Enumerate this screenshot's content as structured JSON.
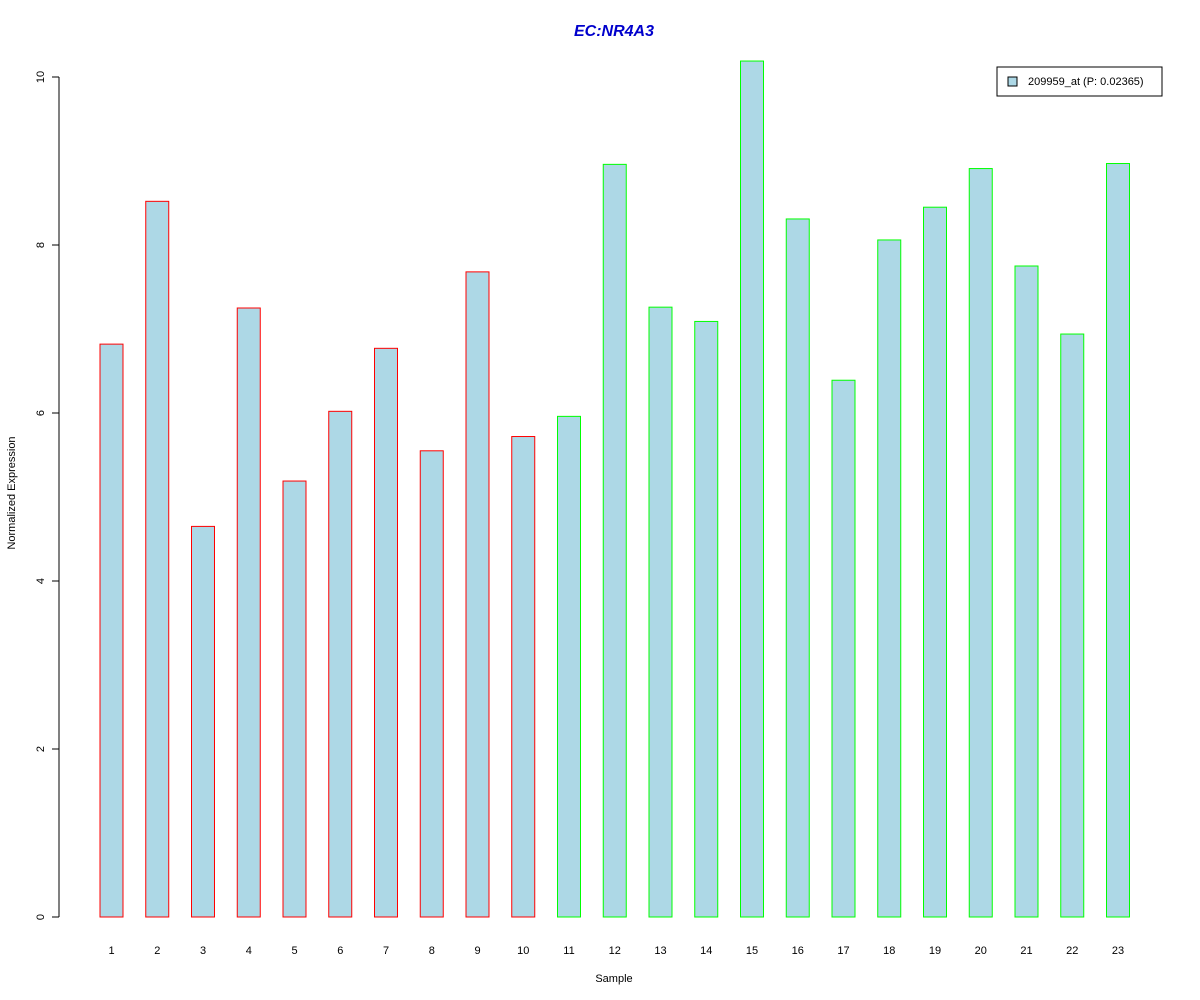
{
  "chart_data": {
    "type": "bar",
    "title": "EC:NR4A3",
    "xlabel": "Sample",
    "ylabel": "Normalized Expression",
    "categories": [
      "1",
      "2",
      "3",
      "4",
      "5",
      "6",
      "7",
      "8",
      "9",
      "10",
      "11",
      "12",
      "13",
      "14",
      "15",
      "16",
      "17",
      "18",
      "19",
      "20",
      "21",
      "22",
      "23"
    ],
    "series": [
      {
        "name": "209959_at (P: 0.02365)",
        "values": [
          6.82,
          8.52,
          4.65,
          7.25,
          5.19,
          6.02,
          6.77,
          5.55,
          7.68,
          5.72,
          5.96,
          8.96,
          7.26,
          7.09,
          10.19,
          8.31,
          6.39,
          8.06,
          8.45,
          8.91,
          7.75,
          6.94,
          8.97
        ]
      }
    ],
    "group_of_bar": [
      "A",
      "A",
      "A",
      "A",
      "A",
      "A",
      "A",
      "A",
      "A",
      "A",
      "B",
      "B",
      "B",
      "B",
      "B",
      "B",
      "B",
      "B",
      "B",
      "B",
      "B",
      "B",
      "B"
    ],
    "ylim": [
      0,
      10.2
    ],
    "yticks": [
      0,
      2,
      4,
      6,
      8,
      10
    ],
    "grid": false,
    "legend_position": "top-right",
    "colors": {
      "bar_fill": "#add8e6",
      "group_A_border": "#ff0000",
      "group_B_border": "#00ff00",
      "title": "#0000cc",
      "axis": "#000000"
    }
  }
}
